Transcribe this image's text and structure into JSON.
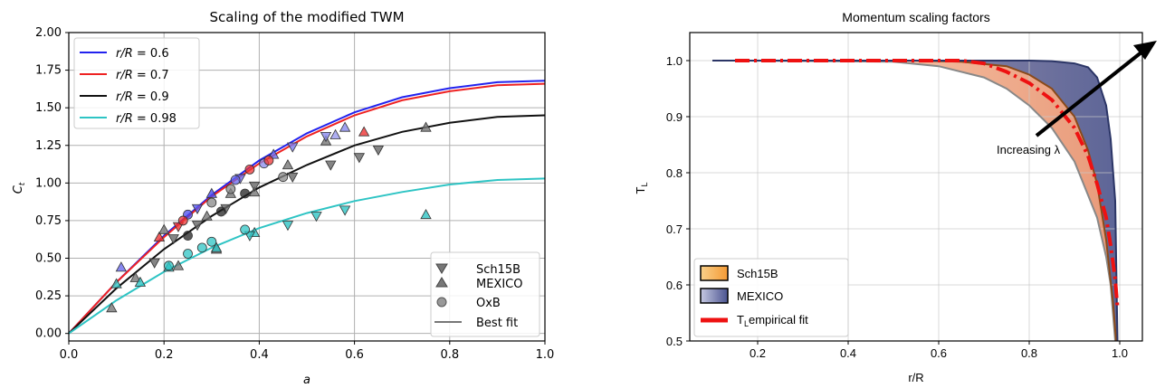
{
  "chart_data": [
    {
      "type": "line",
      "title": "Scaling of the modified TWM",
      "xlabel": "a",
      "ylabel": "C",
      "ylabel_sub": "t",
      "xlim": [
        0.0,
        1.0
      ],
      "ylim": [
        -0.05,
        2.0
      ],
      "xticks": [
        "0.0",
        "0.2",
        "0.4",
        "0.6",
        "0.8",
        "1.0"
      ],
      "yticks": [
        "0.00",
        "0.25",
        "0.50",
        "0.75",
        "1.00",
        "1.25",
        "1.50",
        "1.75",
        "2.00"
      ],
      "grid": true,
      "legend_curves": {
        "placement": "top-left",
        "entries": [
          {
            "prefix": "r/R",
            "value": " = 0.6",
            "color": "#2222ee"
          },
          {
            "prefix": "r/R",
            "value": " = 0.7",
            "color": "#ee2222"
          },
          {
            "prefix": "r/R",
            "value": " = 0.9",
            "color": "#111111"
          },
          {
            "prefix": "r/R",
            "value": " = 0.98",
            "color": "#2ec4c4"
          }
        ]
      },
      "legend_markers": {
        "placement": "bottom-right",
        "entries": [
          {
            "label": "Sch15B",
            "marker": "triangle-down"
          },
          {
            "label": "MEXICO",
            "marker": "triangle-up"
          },
          {
            "label": "OxB",
            "marker": "circle"
          },
          {
            "label": "Best fit",
            "marker": "line"
          }
        ]
      },
      "series": [
        {
          "color": "#2222ee",
          "x": [
            0,
            0.1,
            0.2,
            0.3,
            0.4,
            0.5,
            0.6,
            0.7,
            0.8,
            0.9,
            1.0
          ],
          "values": [
            0,
            0.34,
            0.65,
            0.92,
            1.15,
            1.33,
            1.47,
            1.57,
            1.63,
            1.67,
            1.68
          ]
        },
        {
          "color": "#ee2222",
          "x": [
            0,
            0.1,
            0.2,
            0.3,
            0.4,
            0.5,
            0.6,
            0.7,
            0.8,
            0.9,
            1.0
          ],
          "values": [
            0,
            0.34,
            0.64,
            0.91,
            1.13,
            1.31,
            1.45,
            1.55,
            1.61,
            1.65,
            1.66
          ]
        },
        {
          "color": "#111111",
          "x": [
            0,
            0.1,
            0.2,
            0.3,
            0.4,
            0.5,
            0.6,
            0.7,
            0.8,
            0.9,
            1.0
          ],
          "values": [
            0,
            0.3,
            0.56,
            0.78,
            0.97,
            1.12,
            1.25,
            1.34,
            1.4,
            1.44,
            1.45
          ]
        },
        {
          "color": "#2ec4c4",
          "x": [
            0,
            0.1,
            0.2,
            0.3,
            0.4,
            0.5,
            0.6,
            0.7,
            0.8,
            0.9,
            1.0
          ],
          "values": [
            0,
            0.22,
            0.41,
            0.57,
            0.7,
            0.8,
            0.88,
            0.94,
            0.99,
            1.02,
            1.03
          ]
        }
      ],
      "points": [
        {
          "marker": "up",
          "color": "#6a6aee",
          "x": 0.11,
          "y": 0.44
        },
        {
          "marker": "up",
          "color": "#4a4aee",
          "x": 0.3,
          "y": 0.93
        },
        {
          "marker": "up",
          "color": "#6a6aee",
          "x": 0.43,
          "y": 1.19
        },
        {
          "marker": "up",
          "color": "#8a8aee",
          "x": 0.58,
          "y": 1.37
        },
        {
          "marker": "up",
          "color": "#9a9aee",
          "x": 0.56,
          "y": 1.32
        },
        {
          "marker": "up",
          "color": "#ee3333",
          "x": 0.19,
          "y": 0.64
        },
        {
          "marker": "up",
          "color": "#ee3333",
          "x": 0.62,
          "y": 1.34
        },
        {
          "marker": "up",
          "color": "#777777",
          "x": 0.09,
          "y": 0.17
        },
        {
          "marker": "up",
          "color": "#777777",
          "x": 0.14,
          "y": 0.37
        },
        {
          "marker": "up",
          "color": "#777777",
          "x": 0.2,
          "y": 0.69
        },
        {
          "marker": "up",
          "color": "#777777",
          "x": 0.29,
          "y": 0.78
        },
        {
          "marker": "up",
          "color": "#777777",
          "x": 0.34,
          "y": 0.93
        },
        {
          "marker": "up",
          "color": "#777777",
          "x": 0.39,
          "y": 0.94
        },
        {
          "marker": "up",
          "color": "#777777",
          "x": 0.46,
          "y": 1.12
        },
        {
          "marker": "up",
          "color": "#777777",
          "x": 0.54,
          "y": 1.28
        },
        {
          "marker": "up",
          "color": "#777777",
          "x": 0.75,
          "y": 1.37
        },
        {
          "marker": "up",
          "color": "#777777",
          "x": 0.23,
          "y": 0.45
        },
        {
          "marker": "up",
          "color": "#777777",
          "x": 0.31,
          "y": 0.56
        },
        {
          "marker": "up",
          "color": "#2ec4c4",
          "x": 0.1,
          "y": 0.33
        },
        {
          "marker": "up",
          "color": "#2ec4c4",
          "x": 0.15,
          "y": 0.34
        },
        {
          "marker": "up",
          "color": "#2ec4c4",
          "x": 0.21,
          "y": 0.44
        },
        {
          "marker": "up",
          "color": "#2ec4c4",
          "x": 0.31,
          "y": 0.57
        },
        {
          "marker": "up",
          "color": "#2ec4c4",
          "x": 0.39,
          "y": 0.67
        },
        {
          "marker": "up",
          "color": "#2ec4c4",
          "x": 0.75,
          "y": 0.79
        },
        {
          "marker": "down",
          "color": "#5a5aee",
          "x": 0.27,
          "y": 0.83
        },
        {
          "marker": "down",
          "color": "#6a6aee",
          "x": 0.36,
          "y": 1.03
        },
        {
          "marker": "down",
          "color": "#7a7aee",
          "x": 0.47,
          "y": 1.24
        },
        {
          "marker": "down",
          "color": "#8a8aee",
          "x": 0.54,
          "y": 1.31
        },
        {
          "marker": "down",
          "color": "#ee3333",
          "x": 0.23,
          "y": 0.71
        },
        {
          "marker": "down",
          "color": "#666666",
          "x": 0.18,
          "y": 0.47
        },
        {
          "marker": "down",
          "color": "#666666",
          "x": 0.22,
          "y": 0.63
        },
        {
          "marker": "down",
          "color": "#666666",
          "x": 0.27,
          "y": 0.72
        },
        {
          "marker": "down",
          "color": "#666666",
          "x": 0.33,
          "y": 0.83
        },
        {
          "marker": "down",
          "color": "#666666",
          "x": 0.39,
          "y": 0.98
        },
        {
          "marker": "down",
          "color": "#666666",
          "x": 0.47,
          "y": 1.04
        },
        {
          "marker": "down",
          "color": "#666666",
          "x": 0.55,
          "y": 1.12
        },
        {
          "marker": "down",
          "color": "#666666",
          "x": 0.61,
          "y": 1.17
        },
        {
          "marker": "down",
          "color": "#666666",
          "x": 0.65,
          "y": 1.22
        },
        {
          "marker": "down",
          "color": "#2ec4c4",
          "x": 0.38,
          "y": 0.65
        },
        {
          "marker": "down",
          "color": "#2ec4c4",
          "x": 0.46,
          "y": 0.72
        },
        {
          "marker": "down",
          "color": "#2ec4c4",
          "x": 0.52,
          "y": 0.78
        },
        {
          "marker": "down",
          "color": "#2ec4c4",
          "x": 0.58,
          "y": 0.82
        },
        {
          "marker": "circle",
          "color": "#4a4aee",
          "x": 0.25,
          "y": 0.79
        },
        {
          "marker": "circle",
          "color": "#6a6aee",
          "x": 0.35,
          "y": 1.02
        },
        {
          "marker": "circle",
          "color": "#8a8aee",
          "x": 0.41,
          "y": 1.13
        },
        {
          "marker": "circle",
          "color": "#ee3333",
          "x": 0.24,
          "y": 0.75
        },
        {
          "marker": "circle",
          "color": "#ee3333",
          "x": 0.38,
          "y": 1.09
        },
        {
          "marker": "circle",
          "color": "#ee3333",
          "x": 0.42,
          "y": 1.15
        },
        {
          "marker": "circle",
          "color": "#222222",
          "x": 0.25,
          "y": 0.65
        },
        {
          "marker": "circle",
          "color": "#222222",
          "x": 0.32,
          "y": 0.81
        },
        {
          "marker": "circle",
          "color": "#222222",
          "x": 0.37,
          "y": 0.93
        },
        {
          "marker": "circle",
          "color": "#888888",
          "x": 0.3,
          "y": 0.87
        },
        {
          "marker": "circle",
          "color": "#888888",
          "x": 0.34,
          "y": 0.96
        },
        {
          "marker": "circle",
          "color": "#888888",
          "x": 0.45,
          "y": 1.04
        },
        {
          "marker": "circle",
          "color": "#2ec4c4",
          "x": 0.21,
          "y": 0.45
        },
        {
          "marker": "circle",
          "color": "#2ec4c4",
          "x": 0.25,
          "y": 0.53
        },
        {
          "marker": "circle",
          "color": "#2ec4c4",
          "x": 0.28,
          "y": 0.57
        },
        {
          "marker": "circle",
          "color": "#2ec4c4",
          "x": 0.3,
          "y": 0.61
        },
        {
          "marker": "circle",
          "color": "#2ec4c4",
          "x": 0.37,
          "y": 0.69
        }
      ]
    },
    {
      "type": "area",
      "title": "Momentum scaling factors",
      "xlabel": "r/R",
      "ylabel": "T",
      "ylabel_sub": "L",
      "xlim": [
        0.05,
        1.05
      ],
      "ylim": [
        0.5,
        1.05
      ],
      "xticks": [
        "0.2",
        "0.4",
        "0.6",
        "0.8",
        "1.0"
      ],
      "yticks": [
        "0.5",
        "0.6",
        "0.7",
        "0.8",
        "0.9",
        "1.0"
      ],
      "grid": true,
      "annotation": "Increasing λ",
      "arrow": {
        "from": [
          0.9,
          0.85
        ],
        "to": [
          1.04,
          1.04
        ]
      },
      "legend": {
        "placement": "bottom-left",
        "entries": [
          {
            "label": "Sch15B",
            "swatch": "#f5a142"
          },
          {
            "label": "MEXICO",
            "swatch": "#6a73ad"
          },
          {
            "label": "T",
            "sub": "L",
            "suffix": "empirical fit",
            "swatch": "#ee1111"
          }
        ]
      },
      "series": [
        {
          "name": "outer",
          "color": "#2b3566",
          "x": [
            0.1,
            0.6,
            0.7,
            0.8,
            0.85,
            0.9,
            0.93,
            0.95,
            0.97,
            0.98,
            0.99,
            0.995
          ],
          "values": [
            1.0,
            1.0,
            1.0,
            1.0,
            0.999,
            0.995,
            0.988,
            0.97,
            0.92,
            0.86,
            0.75,
            0.5
          ]
        },
        {
          "name": "middle",
          "color": "#8a4a1a",
          "x": [
            0.15,
            0.55,
            0.65,
            0.75,
            0.8,
            0.85,
            0.9,
            0.93,
            0.95,
            0.97,
            0.985,
            0.992
          ],
          "values": [
            1.0,
            1.0,
            0.998,
            0.99,
            0.975,
            0.95,
            0.9,
            0.84,
            0.78,
            0.68,
            0.57,
            0.5
          ]
        },
        {
          "name": "inner",
          "color": "#888888",
          "x": [
            0.15,
            0.5,
            0.6,
            0.7,
            0.75,
            0.8,
            0.85,
            0.9,
            0.93,
            0.95,
            0.97,
            0.98,
            0.99
          ],
          "values": [
            1.0,
            0.998,
            0.99,
            0.97,
            0.95,
            0.92,
            0.88,
            0.82,
            0.76,
            0.72,
            0.65,
            0.6,
            0.5
          ]
        },
        {
          "name": "fit",
          "color": "#ee1111",
          "x": [
            0.15,
            0.65,
            0.7,
            0.75,
            0.8,
            0.85,
            0.9,
            0.93,
            0.95,
            0.97,
            0.98,
            0.99,
            0.995
          ],
          "values": [
            1.0,
            1.0,
            0.995,
            0.98,
            0.96,
            0.93,
            0.88,
            0.83,
            0.78,
            0.72,
            0.67,
            0.61,
            0.56
          ]
        }
      ]
    }
  ]
}
